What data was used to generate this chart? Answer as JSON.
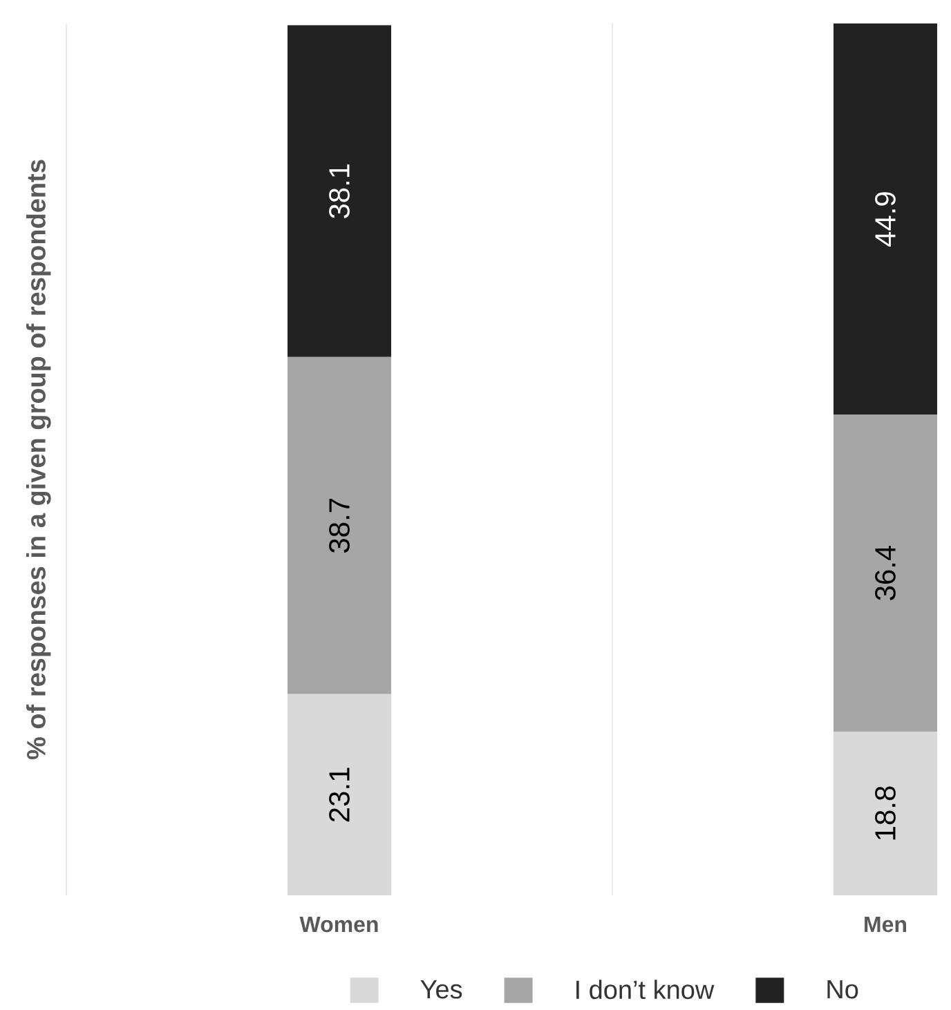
{
  "chart_data": {
    "type": "bar",
    "stacked": true,
    "ylabel": "% of responses in a given group of respondents",
    "categories": [
      "Women",
      "Men"
    ],
    "series": [
      {
        "name": "Yes",
        "color": "#d9d9d9",
        "values": [
          23.1,
          18.8
        ]
      },
      {
        "name": "I don’t know",
        "color": "#a6a6a6",
        "values": [
          38.7,
          36.4
        ]
      },
      {
        "name": "No",
        "color": "#222222",
        "values": [
          38.1,
          44.9
        ]
      }
    ],
    "data_labels": true,
    "grid": "x",
    "legend": "bottom"
  }
}
